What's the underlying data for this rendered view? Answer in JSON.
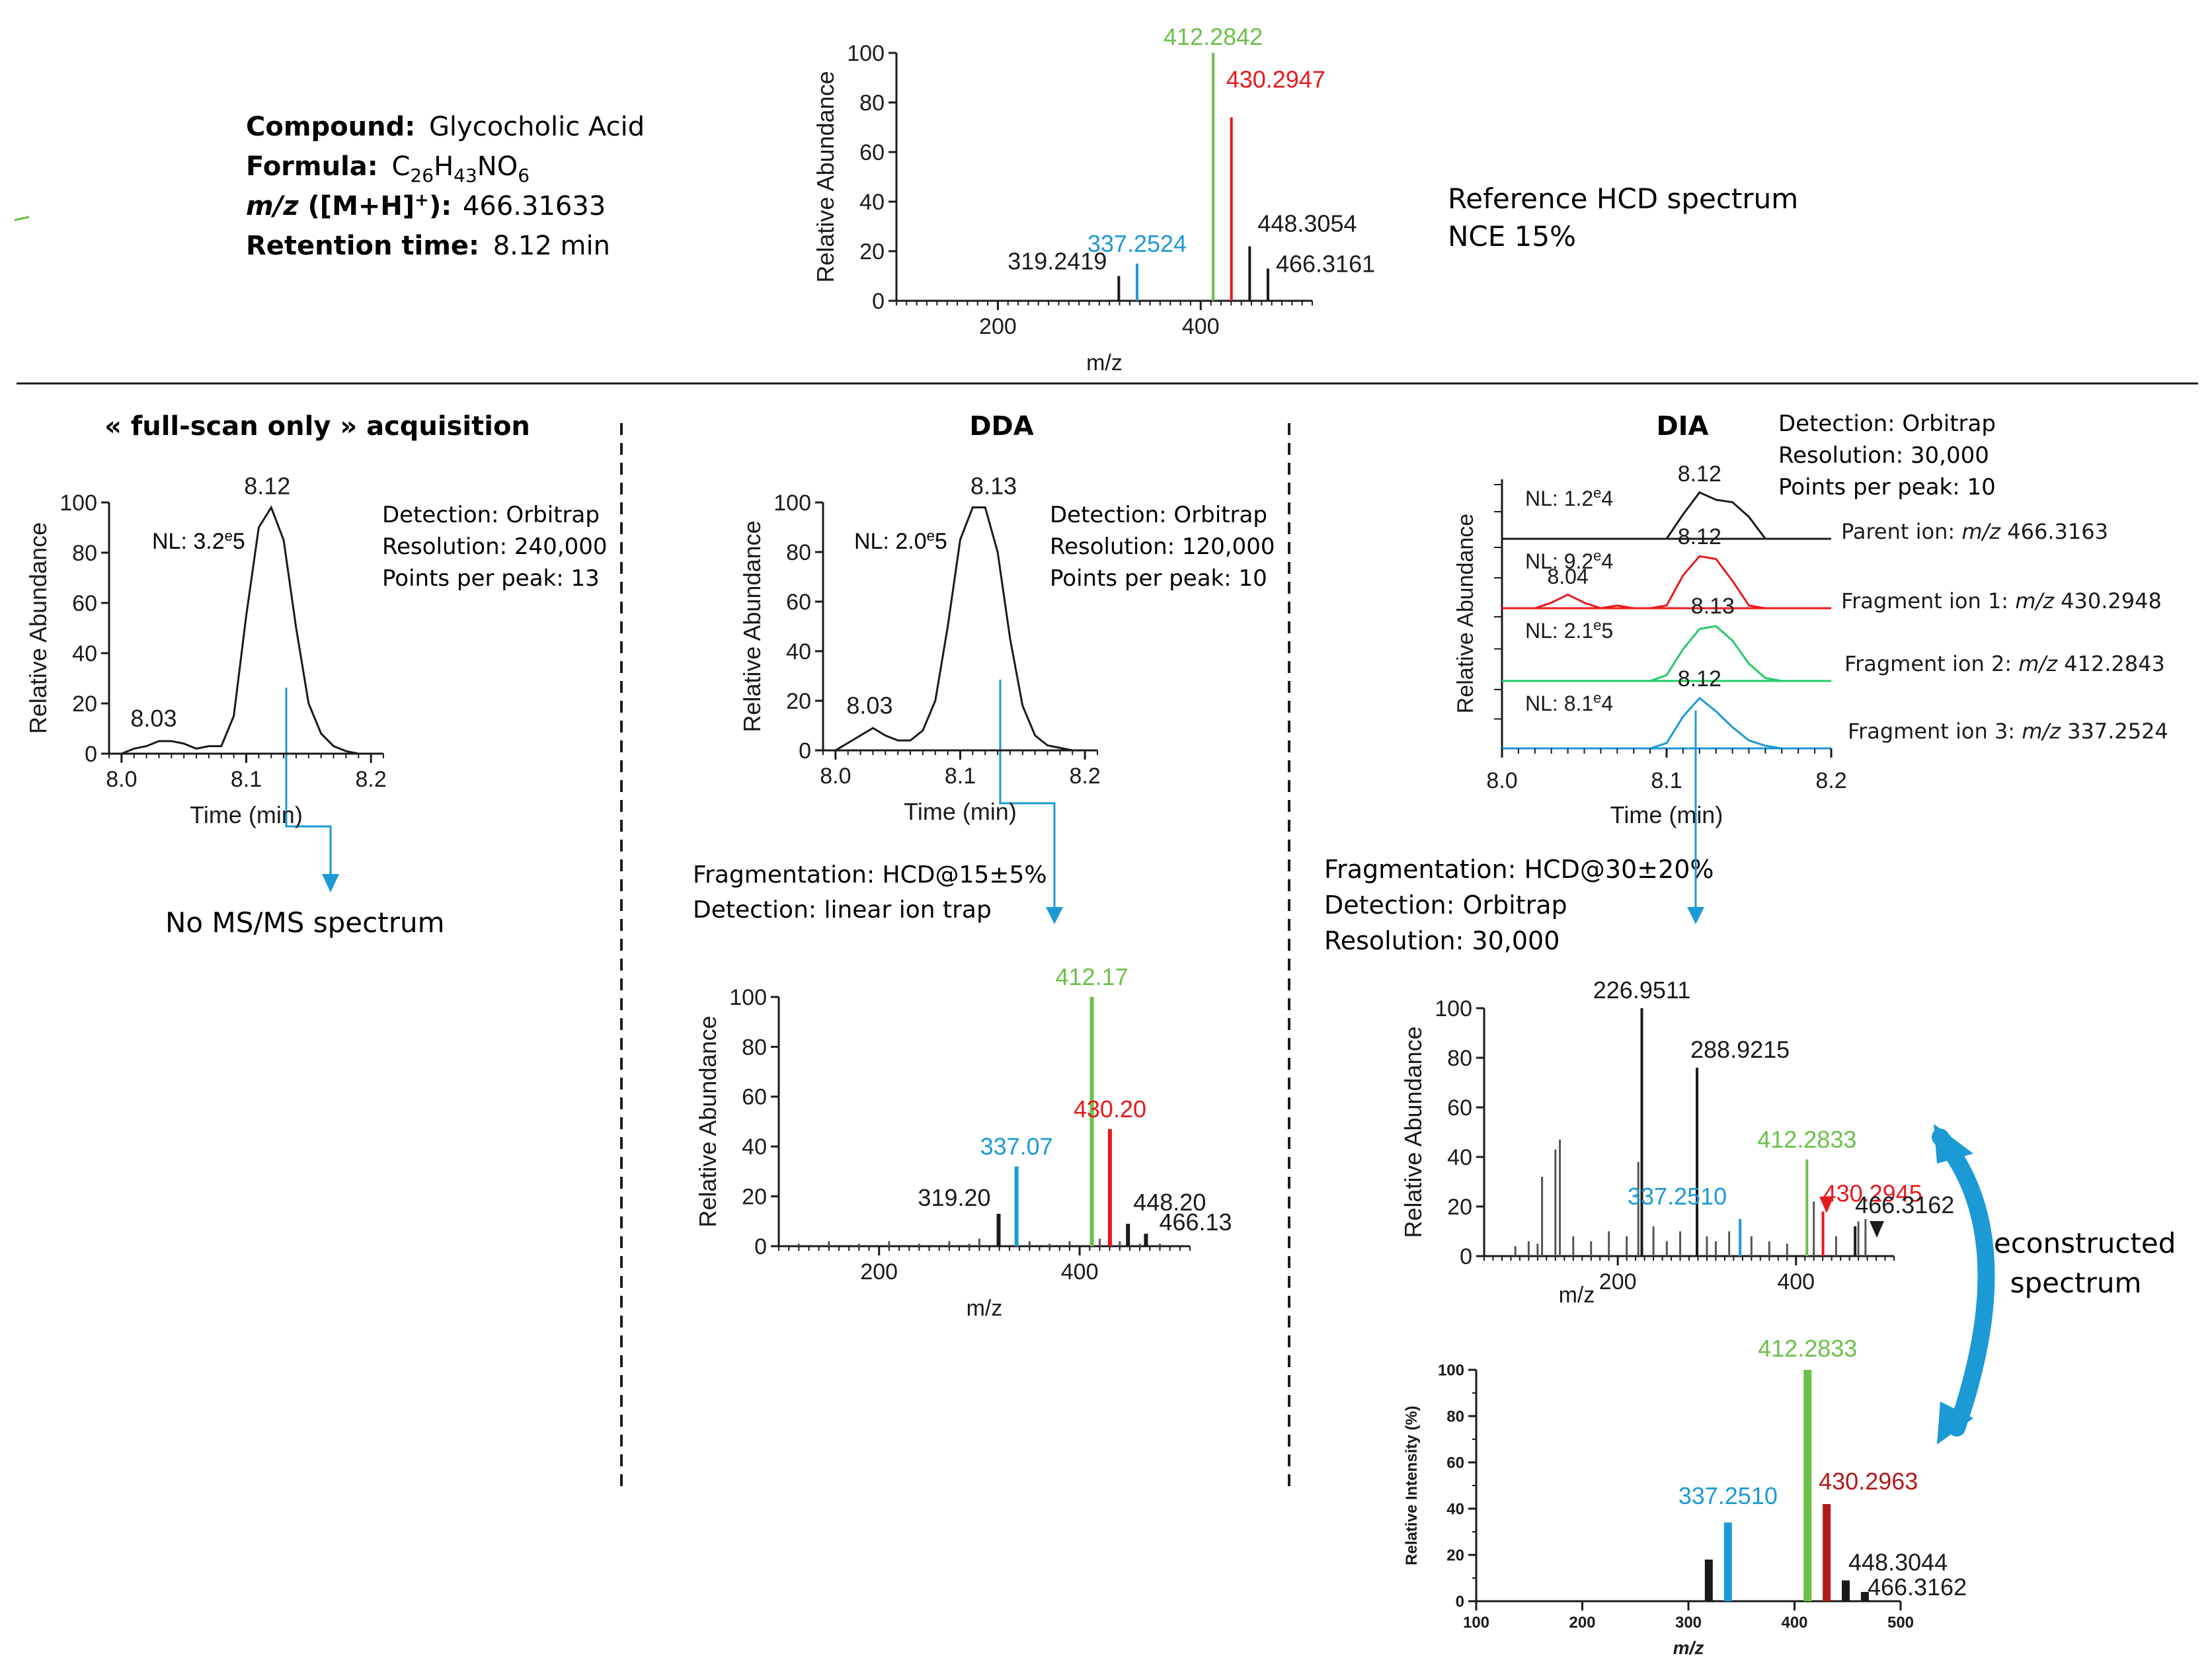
{
  "colors": {
    "black": "#1a1a1a",
    "green": "#6cc04a",
    "red": "#e8191c",
    "blue": "#1b9ad6",
    "teal": "#22cc66",
    "dark_red": "#b11a1a",
    "gray": "#555555"
  },
  "compound_info": [
    {
      "label": "Compound:",
      "value": "Glycocholic Acid"
    },
    {
      "label": "Formula:",
      "value_parts": [
        "C",
        "26",
        "H",
        "43",
        "NO",
        "6"
      ]
    },
    {
      "label_parts": [
        "m/z",
        " ([M+H]",
        "+",
        "):"
      ],
      "value": "466.31633"
    },
    {
      "label": "Retention time:",
      "value": "8.12 min"
    }
  ],
  "reference_note": [
    "Reference  HCD spectrum",
    "NCE 15%"
  ],
  "section_titles": {
    "full_scan": "« full-scan only » acquisition",
    "dda": "DDA",
    "dia": "DIA"
  },
  "full_scan": {
    "info": [
      "Detection: Orbitrap",
      "Resolution: 240,000",
      "Points per peak: 13"
    ],
    "nl_label": "NL:  3.2",
    "nl_exp": "e",
    "nl_tail": "5",
    "result": "No MS/MS spectrum"
  },
  "dda": {
    "info": [
      "Detection: Orbitrap",
      "Resolution: 120,000",
      "Points per peak: 10"
    ],
    "nl_label": "NL:  2.0",
    "nl_exp": "e",
    "nl_tail": "5",
    "fragmentation": [
      "Fragmentation: HCD@15±5%",
      "Detection: linear ion trap"
    ]
  },
  "dia": {
    "info": [
      "Detection: Orbitrap",
      "Resolution: 30,000",
      "Points per peak: 10"
    ],
    "traces": [
      {
        "nl": "NL:  1.2",
        "exp": "e",
        "tail": "4",
        "label": "Parent ion: ",
        "mz_label": "m/z",
        "mz": " 466.3163",
        "apex": "8.12",
        "extra": ""
      },
      {
        "nl": "NL:  9.2",
        "exp": "e",
        "tail": "4",
        "label": "Fragment ion 1: ",
        "mz_label": "m/z",
        "mz": " 430.2948",
        "apex": "8.12",
        "extra": "8.04"
      },
      {
        "nl": "NL:  2.1",
        "exp": "e",
        "tail": "5",
        "label": "Fragment ion 2: ",
        "mz_label": "m/z",
        "mz": " 412.2843",
        "apex": "8.13",
        "extra": ""
      },
      {
        "nl": "NL:  8.1",
        "exp": "e",
        "tail": "4",
        "label": "Fragment ion 3: ",
        "mz_label": "m/z",
        "mz": " 337.2524",
        "apex": "8.12",
        "extra": ""
      }
    ],
    "fragmentation": [
      "Fragmentation: HCD@30±20%",
      "Detection: Orbitrap",
      "Resolution: 30,000"
    ],
    "reconstructed": [
      "Reconstructed",
      "spectrum"
    ]
  },
  "chart_data": [
    {
      "id": "reference",
      "type": "bar",
      "title": "Reference HCD spectrum",
      "xlabel": "m/z",
      "ylabel": "Relative  Abundance",
      "xlim": [
        100,
        510
      ],
      "ylim": [
        0,
        100
      ],
      "xticks": [
        "200",
        "400"
      ],
      "xtick_values": [
        200,
        400
      ],
      "yticks": [
        "0",
        "20",
        "40",
        "60",
        "80",
        "100"
      ],
      "peaks": [
        {
          "x": 319.2419,
          "y": 10,
          "label": "319.2419",
          "color": "black"
        },
        {
          "x": 337.2524,
          "y": 15,
          "label": "337.2524",
          "color": "blue"
        },
        {
          "x": 412.2842,
          "y": 100,
          "label": "412.2842",
          "color": "green"
        },
        {
          "x": 430.2947,
          "y": 74,
          "label": "430.2947",
          "color": "red"
        },
        {
          "x": 448.3054,
          "y": 22,
          "label": "448.3054",
          "color": "black"
        },
        {
          "x": 466.3161,
          "y": 13,
          "label": "466.3161",
          "color": "black"
        }
      ]
    },
    {
      "id": "fullscan_xic",
      "type": "line",
      "xlabel": "Time  (min)",
      "ylabel": "Relative  Abundance",
      "xlim": [
        7.99,
        8.21
      ],
      "ylim": [
        0,
        100
      ],
      "xticks": [
        "8.0",
        "8.1",
        "8.2"
      ],
      "xtick_values": [
        8.0,
        8.1,
        8.2
      ],
      "yticks": [
        "0",
        "20",
        "40",
        "60",
        "80",
        "100"
      ],
      "x": [
        8.0,
        8.01,
        8.02,
        8.03,
        8.04,
        8.05,
        8.06,
        8.07,
        8.08,
        8.09,
        8.1,
        8.11,
        8.12,
        8.13,
        8.14,
        8.15,
        8.16,
        8.17,
        8.18,
        8.19
      ],
      "y": [
        0,
        2,
        3,
        5,
        5,
        4,
        2,
        3,
        3,
        15,
        55,
        90,
        98,
        85,
        50,
        20,
        8,
        3,
        1,
        0
      ],
      "peak_labels": [
        {
          "x": 8.12,
          "y": 98,
          "label": "8.12"
        },
        {
          "x": 8.03,
          "y": 5,
          "label": "8.03"
        }
      ]
    },
    {
      "id": "dda_xic",
      "type": "line",
      "xlabel": "Time  (min)",
      "ylabel": "Relative  Abundance",
      "xlim": [
        7.99,
        8.21
      ],
      "ylim": [
        0,
        100
      ],
      "xticks": [
        "8.0",
        "8.1",
        "8.2"
      ],
      "xtick_values": [
        8.0,
        8.1,
        8.2
      ],
      "yticks": [
        "0",
        "20",
        "40",
        "60",
        "80",
        "100"
      ],
      "x": [
        8.0,
        8.01,
        8.02,
        8.03,
        8.04,
        8.05,
        8.06,
        8.07,
        8.08,
        8.09,
        8.1,
        8.11,
        8.12,
        8.13,
        8.14,
        8.15,
        8.16,
        8.17,
        8.18,
        8.19
      ],
      "y": [
        0,
        3,
        6,
        9,
        6,
        4,
        4,
        8,
        20,
        50,
        85,
        98,
        98,
        80,
        45,
        18,
        6,
        2,
        1,
        0
      ],
      "peak_labels": [
        {
          "x": 8.13,
          "y": 98,
          "label": "8.13"
        },
        {
          "x": 8.03,
          "y": 9,
          "label": "8.03"
        }
      ]
    },
    {
      "id": "dda_msms",
      "type": "bar",
      "xlabel": "m/z",
      "ylabel": "Relative  Abundance",
      "xlim": [
        100,
        510
      ],
      "ylim": [
        0,
        100
      ],
      "xticks": [
        "200",
        "400"
      ],
      "xtick_values": [
        200,
        400
      ],
      "yticks": [
        "0",
        "20",
        "40",
        "60",
        "80",
        "100"
      ],
      "peaks": [
        {
          "x": 319.2,
          "y": 13,
          "label": "319.20",
          "color": "black"
        },
        {
          "x": 337.07,
          "y": 32,
          "label": "337.07",
          "color": "blue"
        },
        {
          "x": 412.17,
          "y": 100,
          "label": "412.17",
          "color": "green"
        },
        {
          "x": 430.2,
          "y": 47,
          "label": "430.20",
          "color": "red"
        },
        {
          "x": 448.2,
          "y": 9,
          "label": "448.20",
          "color": "black"
        },
        {
          "x": 466.13,
          "y": 5,
          "label": "466.13",
          "color": "black"
        }
      ],
      "noise": [
        [
          120,
          1
        ],
        [
          150,
          2
        ],
        [
          180,
          1
        ],
        [
          210,
          2
        ],
        [
          240,
          1
        ],
        [
          270,
          2
        ],
        [
          290,
          1
        ],
        [
          300,
          3
        ],
        [
          350,
          2
        ],
        [
          370,
          1
        ],
        [
          390,
          2
        ],
        [
          420,
          3
        ],
        [
          440,
          2
        ],
        [
          460,
          1
        ],
        [
          480,
          1
        ]
      ]
    },
    {
      "id": "dia_xic",
      "type": "line",
      "xlabel": "Time  (min)",
      "ylabel": "Relative  Abundance",
      "xlim": [
        8.0,
        8.2
      ],
      "xticks": [
        "8.0",
        "8.1",
        "8.2"
      ],
      "xtick_values": [
        8.0,
        8.1,
        8.2
      ],
      "x": [
        8.0,
        8.01,
        8.02,
        8.03,
        8.04,
        8.05,
        8.06,
        8.07,
        8.08,
        8.09,
        8.1,
        8.11,
        8.12,
        8.13,
        8.14,
        8.15,
        8.16,
        8.17,
        8.18,
        8.19,
        8.2
      ],
      "series": [
        {
          "name": "Parent ion",
          "color": "black",
          "values": [
            0,
            0,
            0,
            0,
            0,
            0,
            0,
            0,
            0,
            0,
            0,
            50,
            95,
            80,
            75,
            45,
            0,
            0,
            0,
            0,
            0
          ]
        },
        {
          "name": "Fragment ion 1",
          "color": "red",
          "values": [
            0,
            0,
            0,
            10,
            25,
            10,
            0,
            5,
            0,
            0,
            5,
            60,
            95,
            90,
            50,
            5,
            0,
            0,
            0,
            0,
            0
          ]
        },
        {
          "name": "Fragment ion 2",
          "color": "teal",
          "values": [
            0,
            0,
            0,
            0,
            0,
            0,
            0,
            0,
            0,
            0,
            10,
            55,
            90,
            95,
            70,
            30,
            5,
            0,
            0,
            0,
            0
          ]
        },
        {
          "name": "Fragment ion 3",
          "color": "blue",
          "values": [
            0,
            0,
            0,
            0,
            0,
            0,
            0,
            0,
            0,
            0,
            10,
            60,
            95,
            70,
            40,
            15,
            5,
            0,
            0,
            0,
            0
          ]
        }
      ]
    },
    {
      "id": "dia_msms",
      "type": "bar",
      "xlabel": "m/z",
      "ylabel": "Relative  Abundance",
      "xlim": [
        50,
        510
      ],
      "ylim": [
        0,
        100
      ],
      "xticks": [
        "200",
        "400"
      ],
      "xtick_values": [
        200,
        400
      ],
      "yticks": [
        "0",
        "20",
        "40",
        "60",
        "80",
        "100"
      ],
      "peaks": [
        {
          "x": 226.9511,
          "y": 100,
          "label": "226.9511",
          "color": "black"
        },
        {
          "x": 288.9215,
          "y": 76,
          "label": "288.9215",
          "color": "black"
        },
        {
          "x": 337.251,
          "y": 15,
          "label": "337.2510",
          "color": "blue"
        },
        {
          "x": 412.2833,
          "y": 39,
          "label": "412.2833",
          "color": "green"
        },
        {
          "x": 430.2945,
          "y": 18,
          "label": "430.2945",
          "color": "red"
        },
        {
          "x": 466.3162,
          "y": 12,
          "label": "466.3162",
          "color": "black"
        }
      ],
      "noise": [
        [
          85,
          4
        ],
        [
          100,
          6
        ],
        [
          110,
          5
        ],
        [
          115,
          32
        ],
        [
          130,
          43
        ],
        [
          135,
          47
        ],
        [
          150,
          8
        ],
        [
          170,
          6
        ],
        [
          190,
          10
        ],
        [
          210,
          8
        ],
        [
          223,
          38
        ],
        [
          240,
          12
        ],
        [
          255,
          6
        ],
        [
          270,
          10
        ],
        [
          300,
          8
        ],
        [
          310,
          6
        ],
        [
          325,
          10
        ],
        [
          350,
          8
        ],
        [
          370,
          6
        ],
        [
          390,
          5
        ],
        [
          420,
          22
        ],
        [
          445,
          8
        ],
        [
          470,
          14
        ],
        [
          478,
          15
        ]
      ]
    },
    {
      "id": "reconstructed",
      "type": "bar",
      "xlabel": "m/z",
      "ylabel": "Relative Intensity (%)",
      "xlim": [
        100,
        500
      ],
      "ylim": [
        0,
        100
      ],
      "xticks": [
        "100",
        "200",
        "300",
        "400",
        "500"
      ],
      "xtick_values": [
        100,
        200,
        300,
        400,
        500
      ],
      "yticks": [
        "0",
        "20",
        "40",
        "60",
        "80",
        "100"
      ],
      "peaks": [
        {
          "x": 319.2,
          "y": 18,
          "label": "",
          "color": "black"
        },
        {
          "x": 337.251,
          "y": 34,
          "label": "337.2510",
          "color": "blue"
        },
        {
          "x": 412.2833,
          "y": 100,
          "label": "412.2833",
          "color": "green"
        },
        {
          "x": 430.2963,
          "y": 42,
          "label": "430.2963",
          "color": "dark_red"
        },
        {
          "x": 448.3044,
          "y": 9,
          "label": "448.3044",
          "color": "black"
        },
        {
          "x": 466.3162,
          "y": 4,
          "label": "466.3162",
          "color": "black"
        }
      ]
    }
  ]
}
